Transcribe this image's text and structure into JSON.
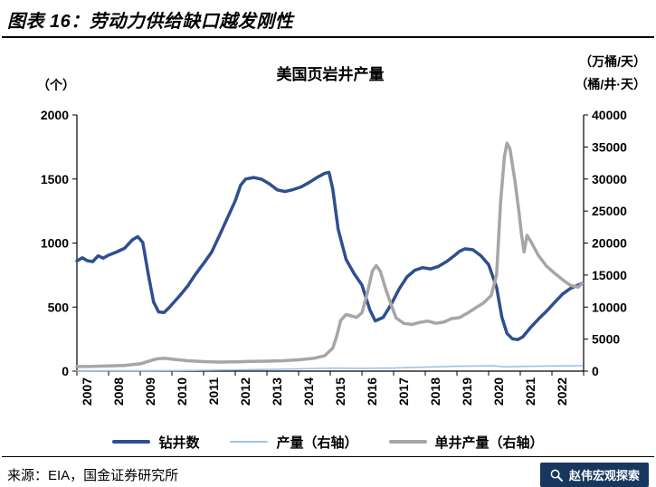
{
  "header": {
    "title": "图表 16：劳动力供给缺口越发刚性"
  },
  "footer": {
    "source": "来源：EIA，国金证券研究所",
    "badge": "赵伟宏观探索",
    "badge_color": "#17375e"
  },
  "chart_data": {
    "type": "line",
    "title": "美国页岩井产量",
    "legend_position": "bottom",
    "grid": false,
    "left_axis": {
      "label": "（个）",
      "min": 0,
      "max": 2000,
      "ticks": [
        0,
        500,
        1000,
        1500,
        2000
      ]
    },
    "right_axis": {
      "labels": [
        "（万桶/天）",
        "（桶/井·天）"
      ],
      "min": 0,
      "max": 40000,
      "ticks": [
        0,
        5000,
        10000,
        15000,
        20000,
        25000,
        30000,
        35000,
        40000
      ]
    },
    "x_domain": [
      2007,
      2023
    ],
    "x_years": [
      2007,
      2008,
      2009,
      2010,
      2011,
      2012,
      2013,
      2014,
      2015,
      2016,
      2017,
      2018,
      2019,
      2020,
      2021,
      2022
    ],
    "series": [
      {
        "id": "drilling-wells",
        "name": "钻井数",
        "axis": "left",
        "color": "#2e4f8f",
        "width": 3.5,
        "points": [
          [
            2007,
            860
          ],
          [
            2007.17,
            885
          ],
          [
            2007.33,
            862
          ],
          [
            2007.5,
            855
          ],
          [
            2007.67,
            900
          ],
          [
            2007.83,
            882
          ],
          [
            2008,
            905
          ],
          [
            2008.25,
            930
          ],
          [
            2008.5,
            958
          ],
          [
            2008.75,
            1025
          ],
          [
            2008.92,
            1050
          ],
          [
            2009.08,
            1005
          ],
          [
            2009.25,
            760
          ],
          [
            2009.42,
            540
          ],
          [
            2009.58,
            462
          ],
          [
            2009.75,
            458
          ],
          [
            2009.92,
            498
          ],
          [
            2010.25,
            590
          ],
          [
            2010.5,
            665
          ],
          [
            2010.75,
            758
          ],
          [
            2011,
            840
          ],
          [
            2011.25,
            928
          ],
          [
            2011.5,
            1058
          ],
          [
            2011.75,
            1195
          ],
          [
            2012,
            1330
          ],
          [
            2012.17,
            1452
          ],
          [
            2012.33,
            1500
          ],
          [
            2012.58,
            1512
          ],
          [
            2012.83,
            1498
          ],
          [
            2013.08,
            1462
          ],
          [
            2013.33,
            1415
          ],
          [
            2013.58,
            1402
          ],
          [
            2013.83,
            1418
          ],
          [
            2014.08,
            1438
          ],
          [
            2014.33,
            1472
          ],
          [
            2014.58,
            1512
          ],
          [
            2014.83,
            1545
          ],
          [
            2014.96,
            1552
          ],
          [
            2015.08,
            1420
          ],
          [
            2015.25,
            1105
          ],
          [
            2015.5,
            872
          ],
          [
            2015.75,
            762
          ],
          [
            2016,
            672
          ],
          [
            2016.25,
            478
          ],
          [
            2016.42,
            392
          ],
          [
            2016.67,
            420
          ],
          [
            2016.92,
            520
          ],
          [
            2017.17,
            640
          ],
          [
            2017.42,
            735
          ],
          [
            2017.67,
            788
          ],
          [
            2017.92,
            808
          ],
          [
            2018.17,
            798
          ],
          [
            2018.42,
            818
          ],
          [
            2018.67,
            855
          ],
          [
            2018.92,
            902
          ],
          [
            2019.08,
            935
          ],
          [
            2019.25,
            955
          ],
          [
            2019.5,
            948
          ],
          [
            2019.75,
            902
          ],
          [
            2020,
            832
          ],
          [
            2020.25,
            655
          ],
          [
            2020.42,
            420
          ],
          [
            2020.58,
            295
          ],
          [
            2020.75,
            252
          ],
          [
            2020.92,
            246
          ],
          [
            2021.08,
            268
          ],
          [
            2021.33,
            342
          ],
          [
            2021.58,
            408
          ],
          [
            2021.83,
            468
          ],
          [
            2022.08,
            535
          ],
          [
            2022.33,
            600
          ],
          [
            2022.58,
            645
          ],
          [
            2022.83,
            672
          ],
          [
            2022.95,
            686
          ]
        ]
      },
      {
        "id": "production",
        "name": "产量（右轴）",
        "axis": "right",
        "color": "#9dc3e6",
        "width": 1.6,
        "points": [
          [
            2007,
            45
          ],
          [
            2008,
            55
          ],
          [
            2009,
            62
          ],
          [
            2010,
            85
          ],
          [
            2011,
            125
          ],
          [
            2012,
            185
          ],
          [
            2013,
            265
          ],
          [
            2014,
            360
          ],
          [
            2015,
            460
          ],
          [
            2016,
            440
          ],
          [
            2017,
            480
          ],
          [
            2018,
            620
          ],
          [
            2019,
            760
          ],
          [
            2020.17,
            830
          ],
          [
            2020.5,
            660
          ],
          [
            2021,
            730
          ],
          [
            2022,
            810
          ],
          [
            2022.95,
            855
          ]
        ]
      },
      {
        "id": "per-well-production",
        "name": "单井产量（右轴）",
        "axis": "right",
        "color": "#a6a6a6",
        "width": 3.5,
        "points": [
          [
            2007,
            700
          ],
          [
            2007.5,
            750
          ],
          [
            2008,
            820
          ],
          [
            2008.5,
            880
          ],
          [
            2009,
            1150
          ],
          [
            2009.5,
            1900
          ],
          [
            2009.75,
            2020
          ],
          [
            2010,
            1880
          ],
          [
            2010.5,
            1620
          ],
          [
            2011,
            1480
          ],
          [
            2011.5,
            1420
          ],
          [
            2012,
            1460
          ],
          [
            2012.5,
            1510
          ],
          [
            2013,
            1560
          ],
          [
            2013.5,
            1620
          ],
          [
            2014,
            1760
          ],
          [
            2014.5,
            2020
          ],
          [
            2014.83,
            2420
          ],
          [
            2015.08,
            3600
          ],
          [
            2015.21,
            5600
          ],
          [
            2015.33,
            7900
          ],
          [
            2015.5,
            8850
          ],
          [
            2015.67,
            8620
          ],
          [
            2015.83,
            8380
          ],
          [
            2016,
            9100
          ],
          [
            2016.17,
            12200
          ],
          [
            2016.33,
            15600
          ],
          [
            2016.45,
            16500
          ],
          [
            2016.58,
            15600
          ],
          [
            2016.75,
            12800
          ],
          [
            2016.92,
            10400
          ],
          [
            2017.08,
            8300
          ],
          [
            2017.33,
            7450
          ],
          [
            2017.58,
            7300
          ],
          [
            2017.83,
            7620
          ],
          [
            2018.08,
            7820
          ],
          [
            2018.33,
            7480
          ],
          [
            2018.58,
            7650
          ],
          [
            2018.83,
            8200
          ],
          [
            2019.08,
            8350
          ],
          [
            2019.33,
            9050
          ],
          [
            2019.58,
            9850
          ],
          [
            2019.83,
            10600
          ],
          [
            2020.08,
            11800
          ],
          [
            2020.25,
            15000
          ],
          [
            2020.38,
            26500
          ],
          [
            2020.5,
            33500
          ],
          [
            2020.58,
            35600
          ],
          [
            2020.67,
            34800
          ],
          [
            2020.83,
            29800
          ],
          [
            2020.96,
            24800
          ],
          [
            2021.04,
            21300
          ],
          [
            2021.12,
            18600
          ],
          [
            2021.21,
            21200
          ],
          [
            2021.33,
            20300
          ],
          [
            2021.58,
            18000
          ],
          [
            2021.83,
            16400
          ],
          [
            2022.08,
            15300
          ],
          [
            2022.33,
            14300
          ],
          [
            2022.58,
            13400
          ],
          [
            2022.83,
            13100
          ],
          [
            2022.95,
            13700
          ]
        ]
      }
    ]
  }
}
